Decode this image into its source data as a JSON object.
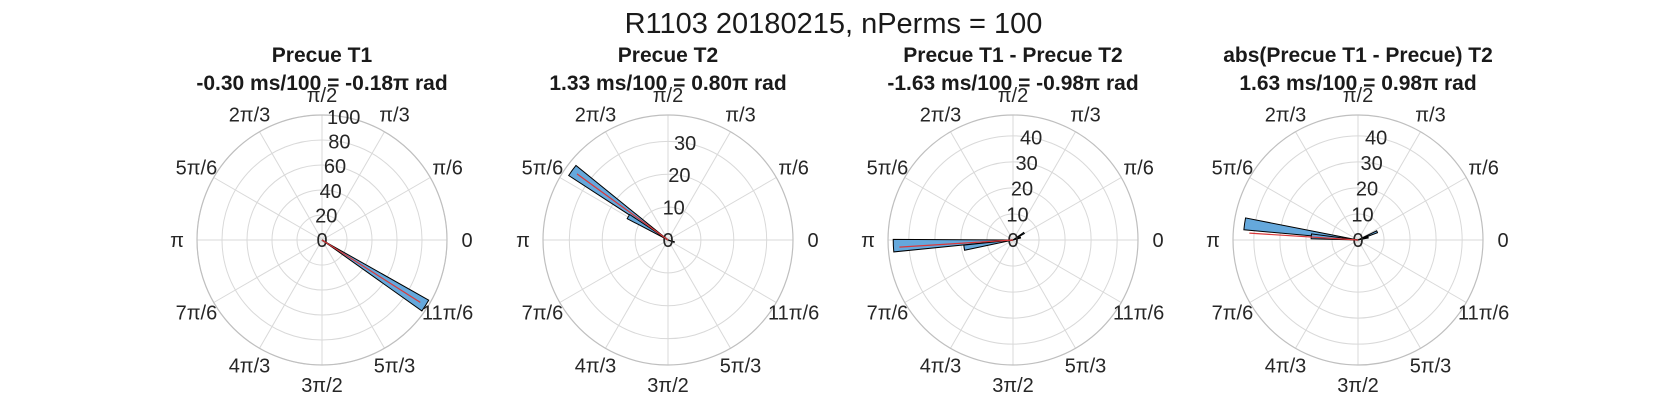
{
  "figure": {
    "title": "R1103 20180215, nPerms = 100"
  },
  "angle_labels": [
    "0",
    "π/6",
    "π/3",
    "π/2",
    "2π/3",
    "5π/6",
    "π",
    "7π/6",
    "4π/3",
    "3π/2",
    "5π/3",
    "11π/6"
  ],
  "colors": {
    "bar_fill": "#65a8dc",
    "bar_edge": "#000000",
    "mean_line": "#d9383a",
    "grid": "#d9d9d9"
  },
  "chart_data": [
    {
      "type": "polar-histogram",
      "title_line1": "Precue T1",
      "title_line2": "-0.30 ms/100 = -0.18π rad",
      "r_ticks": [
        0,
        20,
        40,
        60,
        80,
        100
      ],
      "r_max": 100,
      "mean_angle": -0.18,
      "mean_length": 13,
      "bins": [
        {
          "angle": -0.18,
          "count": 98
        }
      ]
    },
    {
      "type": "polar-histogram",
      "title_line1": "Precue T2",
      "title_line2": "1.33 ms/100 = 0.80π rad",
      "r_ticks": [
        0,
        10,
        20,
        30
      ],
      "r_max": 38,
      "mean_angle": 0.8,
      "mean_length": 5,
      "bins": [
        {
          "angle": 0.8,
          "count": 36
        },
        {
          "angle": 0.83,
          "count": 14
        },
        {
          "angle": -0.1,
          "count": 2
        }
      ]
    },
    {
      "type": "polar-histogram",
      "title_line1": "Precue T1 - Precue T2",
      "title_line2": "-1.63 ms/100 = -0.98π rad",
      "r_ticks": [
        0,
        10,
        20,
        30,
        40
      ],
      "r_max": 48,
      "mean_angle": -0.98,
      "mean_length": 3,
      "bins": [
        {
          "angle": 1.015,
          "count": 46
        },
        {
          "angle": 1.05,
          "count": 19
        },
        {
          "angle": 0.18,
          "count": 5
        },
        {
          "angle": 0.1,
          "count": 3
        }
      ]
    },
    {
      "type": "polar-histogram",
      "title_line1": "abs(Precue T1 - Precue) T2",
      "title_line2": "1.63 ms/100 = 0.98π rad",
      "r_ticks": [
        0,
        10,
        20,
        30,
        40
      ],
      "r_max": 48,
      "mean_angle": 0.98,
      "mean_length": 3,
      "bins": [
        {
          "angle": 0.955,
          "count": 44
        },
        {
          "angle": 0.975,
          "count": 18
        },
        {
          "angle": 0.13,
          "count": 8
        },
        {
          "angle": 0.08,
          "count": 4
        }
      ]
    }
  ]
}
